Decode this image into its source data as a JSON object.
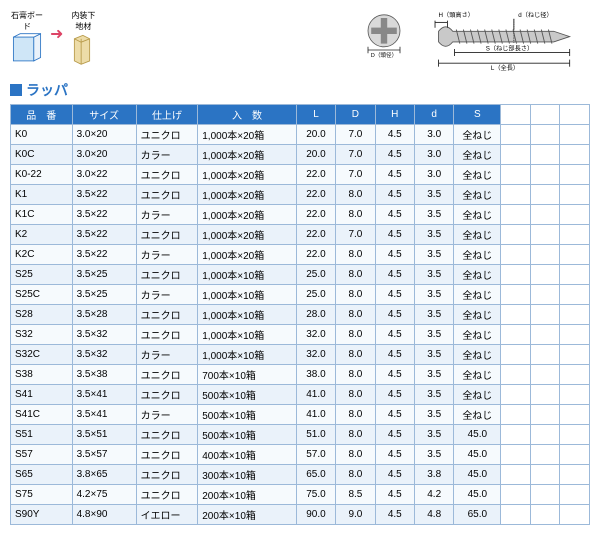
{
  "top_labels": {
    "left": "石膏ボード",
    "right": "内装下地材"
  },
  "title": "ラッパ",
  "screw_labels": {
    "H": "H（頭高さ）",
    "d": "d（ねじ径）",
    "D": "D（頭径）",
    "S": "S（ねじ部長さ）",
    "L": "L（全長）"
  },
  "columns": [
    "品　番",
    "サイズ",
    "仕上げ",
    "入　数",
    "L",
    "D",
    "H",
    "d",
    "S"
  ],
  "rows": [
    [
      "K0",
      "3.0×20",
      "ユニクロ",
      "1,000本×20箱",
      "20.0",
      "7.0",
      "4.5",
      "3.0",
      "全ねじ"
    ],
    [
      "K0C",
      "3.0×20",
      "カラー",
      "1,000本×20箱",
      "20.0",
      "7.0",
      "4.5",
      "3.0",
      "全ねじ"
    ],
    [
      "K0-22",
      "3.0×22",
      "ユニクロ",
      "1,000本×20箱",
      "22.0",
      "7.0",
      "4.5",
      "3.0",
      "全ねじ"
    ],
    [
      "K1",
      "3.5×22",
      "ユニクロ",
      "1,000本×20箱",
      "22.0",
      "8.0",
      "4.5",
      "3.5",
      "全ねじ"
    ],
    [
      "K1C",
      "3.5×22",
      "カラー",
      "1,000本×20箱",
      "22.0",
      "8.0",
      "4.5",
      "3.5",
      "全ねじ"
    ],
    [
      "K2",
      "3.5×22",
      "ユニクロ",
      "1,000本×20箱",
      "22.0",
      "7.0",
      "4.5",
      "3.5",
      "全ねじ"
    ],
    [
      "K2C",
      "3.5×22",
      "カラー",
      "1,000本×20箱",
      "22.0",
      "8.0",
      "4.5",
      "3.5",
      "全ねじ"
    ],
    [
      "S25",
      "3.5×25",
      "ユニクロ",
      "1,000本×10箱",
      "25.0",
      "8.0",
      "4.5",
      "3.5",
      "全ねじ"
    ],
    [
      "S25C",
      "3.5×25",
      "カラー",
      "1,000本×10箱",
      "25.0",
      "8.0",
      "4.5",
      "3.5",
      "全ねじ"
    ],
    [
      "S28",
      "3.5×28",
      "ユニクロ",
      "1,000本×10箱",
      "28.0",
      "8.0",
      "4.5",
      "3.5",
      "全ねじ"
    ],
    [
      "S32",
      "3.5×32",
      "ユニクロ",
      "1,000本×10箱",
      "32.0",
      "8.0",
      "4.5",
      "3.5",
      "全ねじ"
    ],
    [
      "S32C",
      "3.5×32",
      "カラー",
      "1,000本×10箱",
      "32.0",
      "8.0",
      "4.5",
      "3.5",
      "全ねじ"
    ],
    [
      "S38",
      "3.5×38",
      "ユニクロ",
      "700本×10箱",
      "38.0",
      "8.0",
      "4.5",
      "3.5",
      "全ねじ"
    ],
    [
      "S41",
      "3.5×41",
      "ユニクロ",
      "500本×10箱",
      "41.0",
      "8.0",
      "4.5",
      "3.5",
      "全ねじ"
    ],
    [
      "S41C",
      "3.5×41",
      "カラー",
      "500本×10箱",
      "41.0",
      "8.0",
      "4.5",
      "3.5",
      "全ねじ"
    ],
    [
      "S51",
      "3.5×51",
      "ユニクロ",
      "500本×10箱",
      "51.0",
      "8.0",
      "4.5",
      "3.5",
      "45.0"
    ],
    [
      "S57",
      "3.5×57",
      "ユニクロ",
      "400本×10箱",
      "57.0",
      "8.0",
      "4.5",
      "3.5",
      "45.0"
    ],
    [
      "S65",
      "3.8×65",
      "ユニクロ",
      "300本×10箱",
      "65.0",
      "8.0",
      "4.5",
      "3.8",
      "45.0"
    ],
    [
      "S75",
      "4.2×75",
      "ユニクロ",
      "200本×10箱",
      "75.0",
      "8.5",
      "4.5",
      "4.2",
      "45.0"
    ],
    [
      "S90Y",
      "4.8×90",
      "イエロー",
      "200本×10箱",
      "90.0",
      "9.0",
      "4.5",
      "4.8",
      "65.0"
    ]
  ],
  "colors": {
    "header_bg": "#2b74c4",
    "row_a": "#eaf2fa",
    "row_b": "#f6fafd",
    "border": "#9cb9d9"
  }
}
